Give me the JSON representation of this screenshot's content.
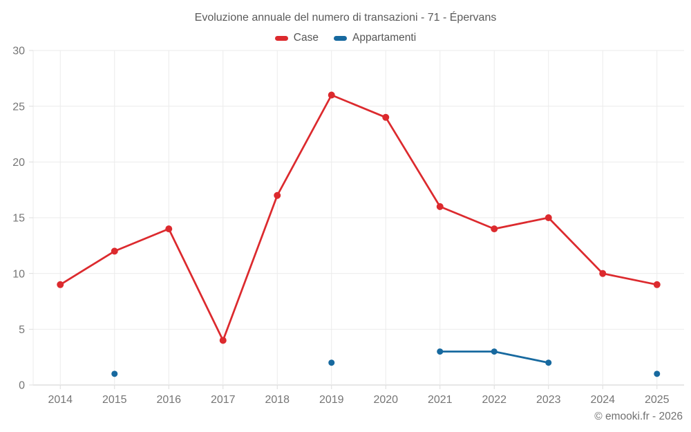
{
  "header": {
    "title": "Evoluzione annuale del numero di transazioni - 71 - Épervans"
  },
  "legend": [
    {
      "label": "Case",
      "color": "#dc2a2e"
    },
    {
      "label": "Appartamenti",
      "color": "#17699f"
    }
  ],
  "footer": {
    "credit": "© emooki.fr - 2026"
  },
  "colors": {
    "grid": "#ebebeb",
    "axis": "#cfcfcf",
    "tick": "#dcdcdc",
    "label": "#757575"
  },
  "chart_data": {
    "type": "line",
    "title": "Evoluzione annuale del numero di transazioni - 71 - Épervans",
    "categories": [
      "2014",
      "2015",
      "2016",
      "2017",
      "2018",
      "2019",
      "2020",
      "2021",
      "2022",
      "2023",
      "2024",
      "2025"
    ],
    "series": [
      {
        "name": "Case",
        "color": "#dc2a2e",
        "marker_radius": 5,
        "values": [
          9,
          12,
          14,
          4,
          17,
          26,
          24,
          16,
          14,
          15,
          10,
          9
        ]
      },
      {
        "name": "Appartamenti",
        "color": "#17699f",
        "marker_radius": 4.5,
        "values": [
          null,
          1,
          null,
          null,
          null,
          2,
          null,
          3,
          3,
          2,
          null,
          1
        ]
      }
    ],
    "xlabel": "",
    "ylabel": "",
    "ylim": [
      0,
      30
    ],
    "yticks": [
      0,
      5,
      10,
      15,
      20,
      25,
      30
    ],
    "grid": true,
    "legend_position": "top"
  }
}
